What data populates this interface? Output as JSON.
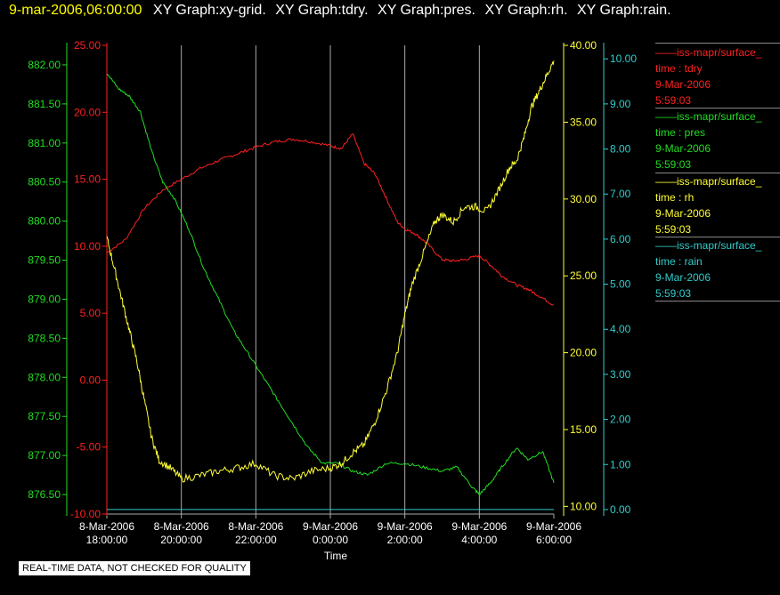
{
  "header": {
    "timestamp": "9-mar-2006,06:00:00",
    "graphs": [
      "XY Graph:xy-grid.",
      "XY Graph:tdry.",
      "XY Graph:pres.",
      "XY Graph:rh.",
      "XY Graph:rain."
    ]
  },
  "note": "REAL-TIME DATA, NOT CHECKED FOR QUALITY",
  "colors": {
    "tdry": "#ff2020",
    "pres": "#22dd22",
    "rh": "#ffff33",
    "rain": "#33cccc",
    "grid": "#aaaaaa"
  },
  "legend": [
    {
      "source": "iss-mapr/surface_",
      "var": "time : tdry",
      "date": "9-Mar-2006",
      "time": "5:59:03",
      "color": "#ff2020"
    },
    {
      "source": "iss-mapr/surface_",
      "var": "time : pres",
      "date": "9-Mar-2006",
      "time": "5:59:03",
      "color": "#22dd22"
    },
    {
      "source": "iss-mapr/surface_",
      "var": "time : rh",
      "date": "9-Mar-2006",
      "time": "5:59:03",
      "color": "#ffff33"
    },
    {
      "source": "iss-mapr/surface_",
      "var": "time : rain",
      "date": "9-Mar-2006",
      "time": "5:59:03",
      "color": "#33cccc"
    }
  ],
  "chart_data": {
    "type": "line",
    "xlabel": "Time",
    "x_range_hours": [
      -6,
      6
    ],
    "x_ticks": [
      {
        "h": -6,
        "date": "8-Mar-2006",
        "time": "18:00:00"
      },
      {
        "h": -4,
        "date": "8-Mar-2006",
        "time": "20:00:00"
      },
      {
        "h": -2,
        "date": "8-Mar-2006",
        "time": "22:00:00"
      },
      {
        "h": 0,
        "date": "9-Mar-2006",
        "time": "0:00:00"
      },
      {
        "h": 2,
        "date": "9-Mar-2006",
        "time": "2:00:00"
      },
      {
        "h": 4,
        "date": "9-Mar-2006",
        "time": "4:00:00"
      },
      {
        "h": 6,
        "date": "9-Mar-2006",
        "time": "6:00:00"
      }
    ],
    "grid": "vertical",
    "axes": {
      "tdry": {
        "range": [
          -10,
          25
        ],
        "ticks": [
          "25.00",
          "20.00",
          "15.00",
          "10.00",
          "5.00",
          "0.00",
          "-5.00",
          "-10.00"
        ],
        "color": "#ff2020"
      },
      "pres": {
        "range": [
          876.25,
          882.25
        ],
        "ticks": [
          "882.00",
          "881.50",
          "881.00",
          "880.50",
          "880.00",
          "879.50",
          "879.00",
          "878.50",
          "878.00",
          "877.50",
          "877.00",
          "876.50"
        ],
        "color": "#22dd22"
      },
      "rh": {
        "range": [
          9.5,
          40
        ],
        "ticks": [
          "40.00",
          "35.00",
          "30.00",
          "25.00",
          "20.00",
          "15.00",
          "10.00"
        ],
        "color": "#ffff33"
      },
      "rain": {
        "range": [
          -0.1,
          10.3
        ],
        "ticks": [
          "10.00",
          "9.00",
          "8.00",
          "7.00",
          "6.00",
          "5.00",
          "4.00",
          "3.00",
          "2.00",
          "1.00",
          "0.00"
        ],
        "color": "#33cccc"
      }
    },
    "series": [
      {
        "key": "tdry",
        "color": "#ff2020",
        "x": [
          -6,
          -5.5,
          -5,
          -4.5,
          -4,
          -3.5,
          -3,
          -2.5,
          -2,
          -1.5,
          -1,
          -0.5,
          0,
          0.3,
          0.6,
          0.9,
          1.2,
          1.5,
          1.8,
          2,
          2.3,
          2.6,
          3,
          3.3,
          3.6,
          4,
          4.3,
          4.6,
          5,
          5.3,
          5.6,
          6
        ],
        "values": [
          9.5,
          10.5,
          12.8,
          14.2,
          15.0,
          15.8,
          16.4,
          16.9,
          17.4,
          17.8,
          18.0,
          17.8,
          17.5,
          17.3,
          18.4,
          16.2,
          15.4,
          13.6,
          11.8,
          11.3,
          10.9,
          10.2,
          9.0,
          8.9,
          9.0,
          9.3,
          8.6,
          7.8,
          7.1,
          6.8,
          6.3,
          5.6
        ]
      },
      {
        "key": "pres",
        "color": "#22dd22",
        "x": [
          -6,
          -5.7,
          -5.4,
          -5.1,
          -4.8,
          -4.5,
          -4.2,
          -3.8,
          -3.4,
          -3,
          -2.6,
          -2.2,
          -1.8,
          -1.4,
          -1,
          -0.6,
          -0.2,
          0.2,
          0.6,
          1,
          1.5,
          2,
          2.5,
          3,
          3.4,
          3.8,
          4,
          4.3,
          4.6,
          5,
          5.3,
          5.7,
          6
        ],
        "values": [
          881.9,
          881.7,
          881.6,
          881.4,
          880.9,
          880.5,
          880.3,
          879.9,
          879.4,
          879.0,
          878.6,
          878.3,
          878.0,
          877.7,
          877.4,
          877.1,
          876.9,
          876.9,
          876.8,
          876.75,
          876.9,
          876.9,
          876.85,
          876.8,
          876.85,
          876.6,
          876.5,
          876.65,
          876.85,
          877.1,
          876.95,
          877.05,
          876.65
        ]
      },
      {
        "key": "rh",
        "color": "#ffff33",
        "x": [
          -6,
          -5.8,
          -5.6,
          -5.4,
          -5.2,
          -5,
          -4.8,
          -4.6,
          -4.3,
          -4,
          -3.5,
          -3,
          -2.5,
          -2,
          -1.5,
          -1,
          -0.5,
          0,
          0.3,
          0.6,
          0.9,
          1.2,
          1.5,
          1.8,
          2,
          2.2,
          2.5,
          2.8,
          3,
          3.3,
          3.6,
          3.9,
          4.2,
          4.5,
          4.8,
          5,
          5.2,
          5.4,
          5.6,
          5.8,
          6
        ],
        "values": [
          27.5,
          25.5,
          23.5,
          21.5,
          19.5,
          17.0,
          14.5,
          13.0,
          12.5,
          11.8,
          12.0,
          12.3,
          12.5,
          12.8,
          12.0,
          11.8,
          12.3,
          12.5,
          12.8,
          13.5,
          14.0,
          15.5,
          17.5,
          20.0,
          22.5,
          24.5,
          26.5,
          28.5,
          29.0,
          28.5,
          29.5,
          29.5,
          29.2,
          30.5,
          32.0,
          32.5,
          34.0,
          36.0,
          37.0,
          38.0,
          39.0
        ]
      },
      {
        "key": "rain",
        "color": "#33cccc",
        "x": [
          -6,
          6
        ],
        "values": [
          0,
          0
        ]
      }
    ]
  }
}
